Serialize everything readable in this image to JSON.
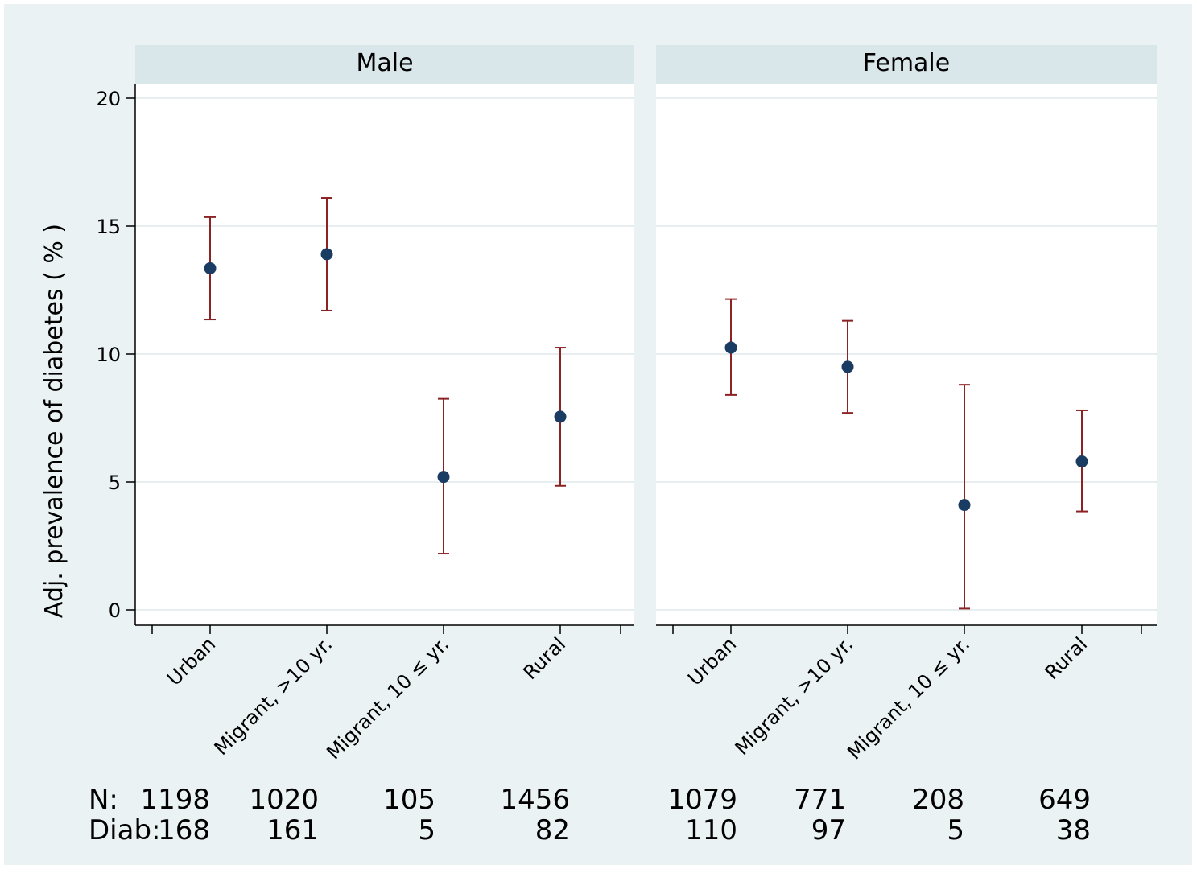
{
  "chart_data": {
    "type": "scatter",
    "ylabel": "Adj. prevalence of diabetes ( % )",
    "ylim": [
      0,
      20
    ],
    "yticks": [
      0,
      5,
      10,
      15,
      20
    ],
    "grid": true,
    "categories": [
      "Urban",
      "Migrant, >10 yr.",
      "Migrant, 10 ≤ yr.",
      "Rural"
    ],
    "panels": [
      {
        "name": "Male",
        "estimates": [
          13.35,
          13.9,
          5.2,
          7.55
        ],
        "ci_low": [
          11.35,
          11.7,
          2.2,
          4.85
        ],
        "ci_high": [
          15.35,
          16.1,
          8.25,
          10.25
        ]
      },
      {
        "name": "Female",
        "estimates": [
          10.25,
          9.5,
          4.1,
          5.8
        ],
        "ci_low": [
          8.4,
          7.7,
          0.05,
          3.85
        ],
        "ci_high": [
          12.15,
          11.3,
          8.8,
          7.8
        ]
      }
    ],
    "counts": {
      "n_label": "N:",
      "diab_label": "Diab:",
      "male": {
        "n": [
          1198,
          1020,
          105,
          1456
        ],
        "diab": [
          168,
          161,
          5,
          82
        ]
      },
      "female": {
        "n": [
          1079,
          771,
          208,
          649
        ],
        "diab": [
          110,
          97,
          5,
          38
        ]
      }
    },
    "colors": {
      "point": "#1a3c63",
      "ci": "#8b2325",
      "panel_header": "#d9e6ea",
      "plot_bg": "#ffffff",
      "grid": "#e7eef0",
      "outer_bg": "#eaf2f3"
    }
  }
}
